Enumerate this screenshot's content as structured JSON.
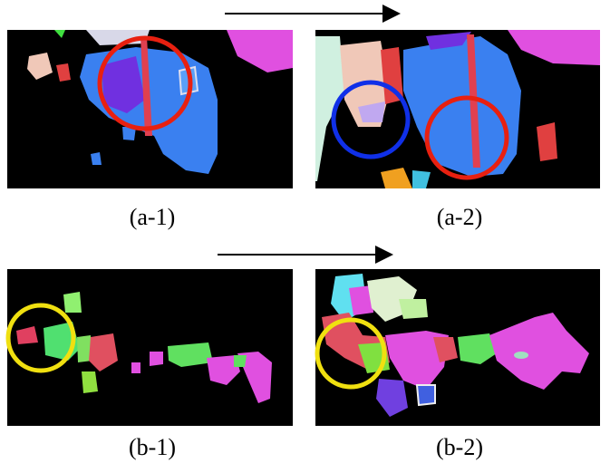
{
  "figure": {
    "panels": [
      {
        "label": "(a-1)"
      },
      {
        "label": "(a-2)"
      },
      {
        "label": "(b-1)"
      },
      {
        "label": "(b-2)"
      }
    ]
  }
}
